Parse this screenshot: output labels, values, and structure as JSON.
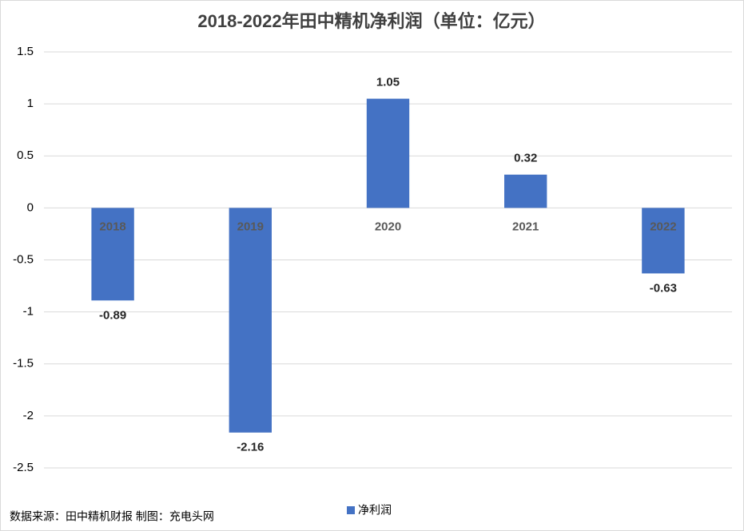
{
  "chart_data": {
    "type": "bar",
    "title": "2018-2022年田中精机净利润（单位：亿元）",
    "categories": [
      "2018",
      "2019",
      "2020",
      "2021",
      "2022"
    ],
    "series": [
      {
        "name": "净利润",
        "color": "#4472c4",
        "values": [
          -0.89,
          -2.16,
          1.05,
          0.32,
          -0.63
        ]
      }
    ],
    "ylim": [
      -2.5,
      1.5
    ],
    "yticks": [
      1.5,
      1,
      0.5,
      0,
      -0.5,
      -1,
      -1.5,
      -2,
      -2.5
    ],
    "grid": true,
    "legend": "bottom",
    "source": "数据来源：田中精机财报 制图：充电头网"
  }
}
